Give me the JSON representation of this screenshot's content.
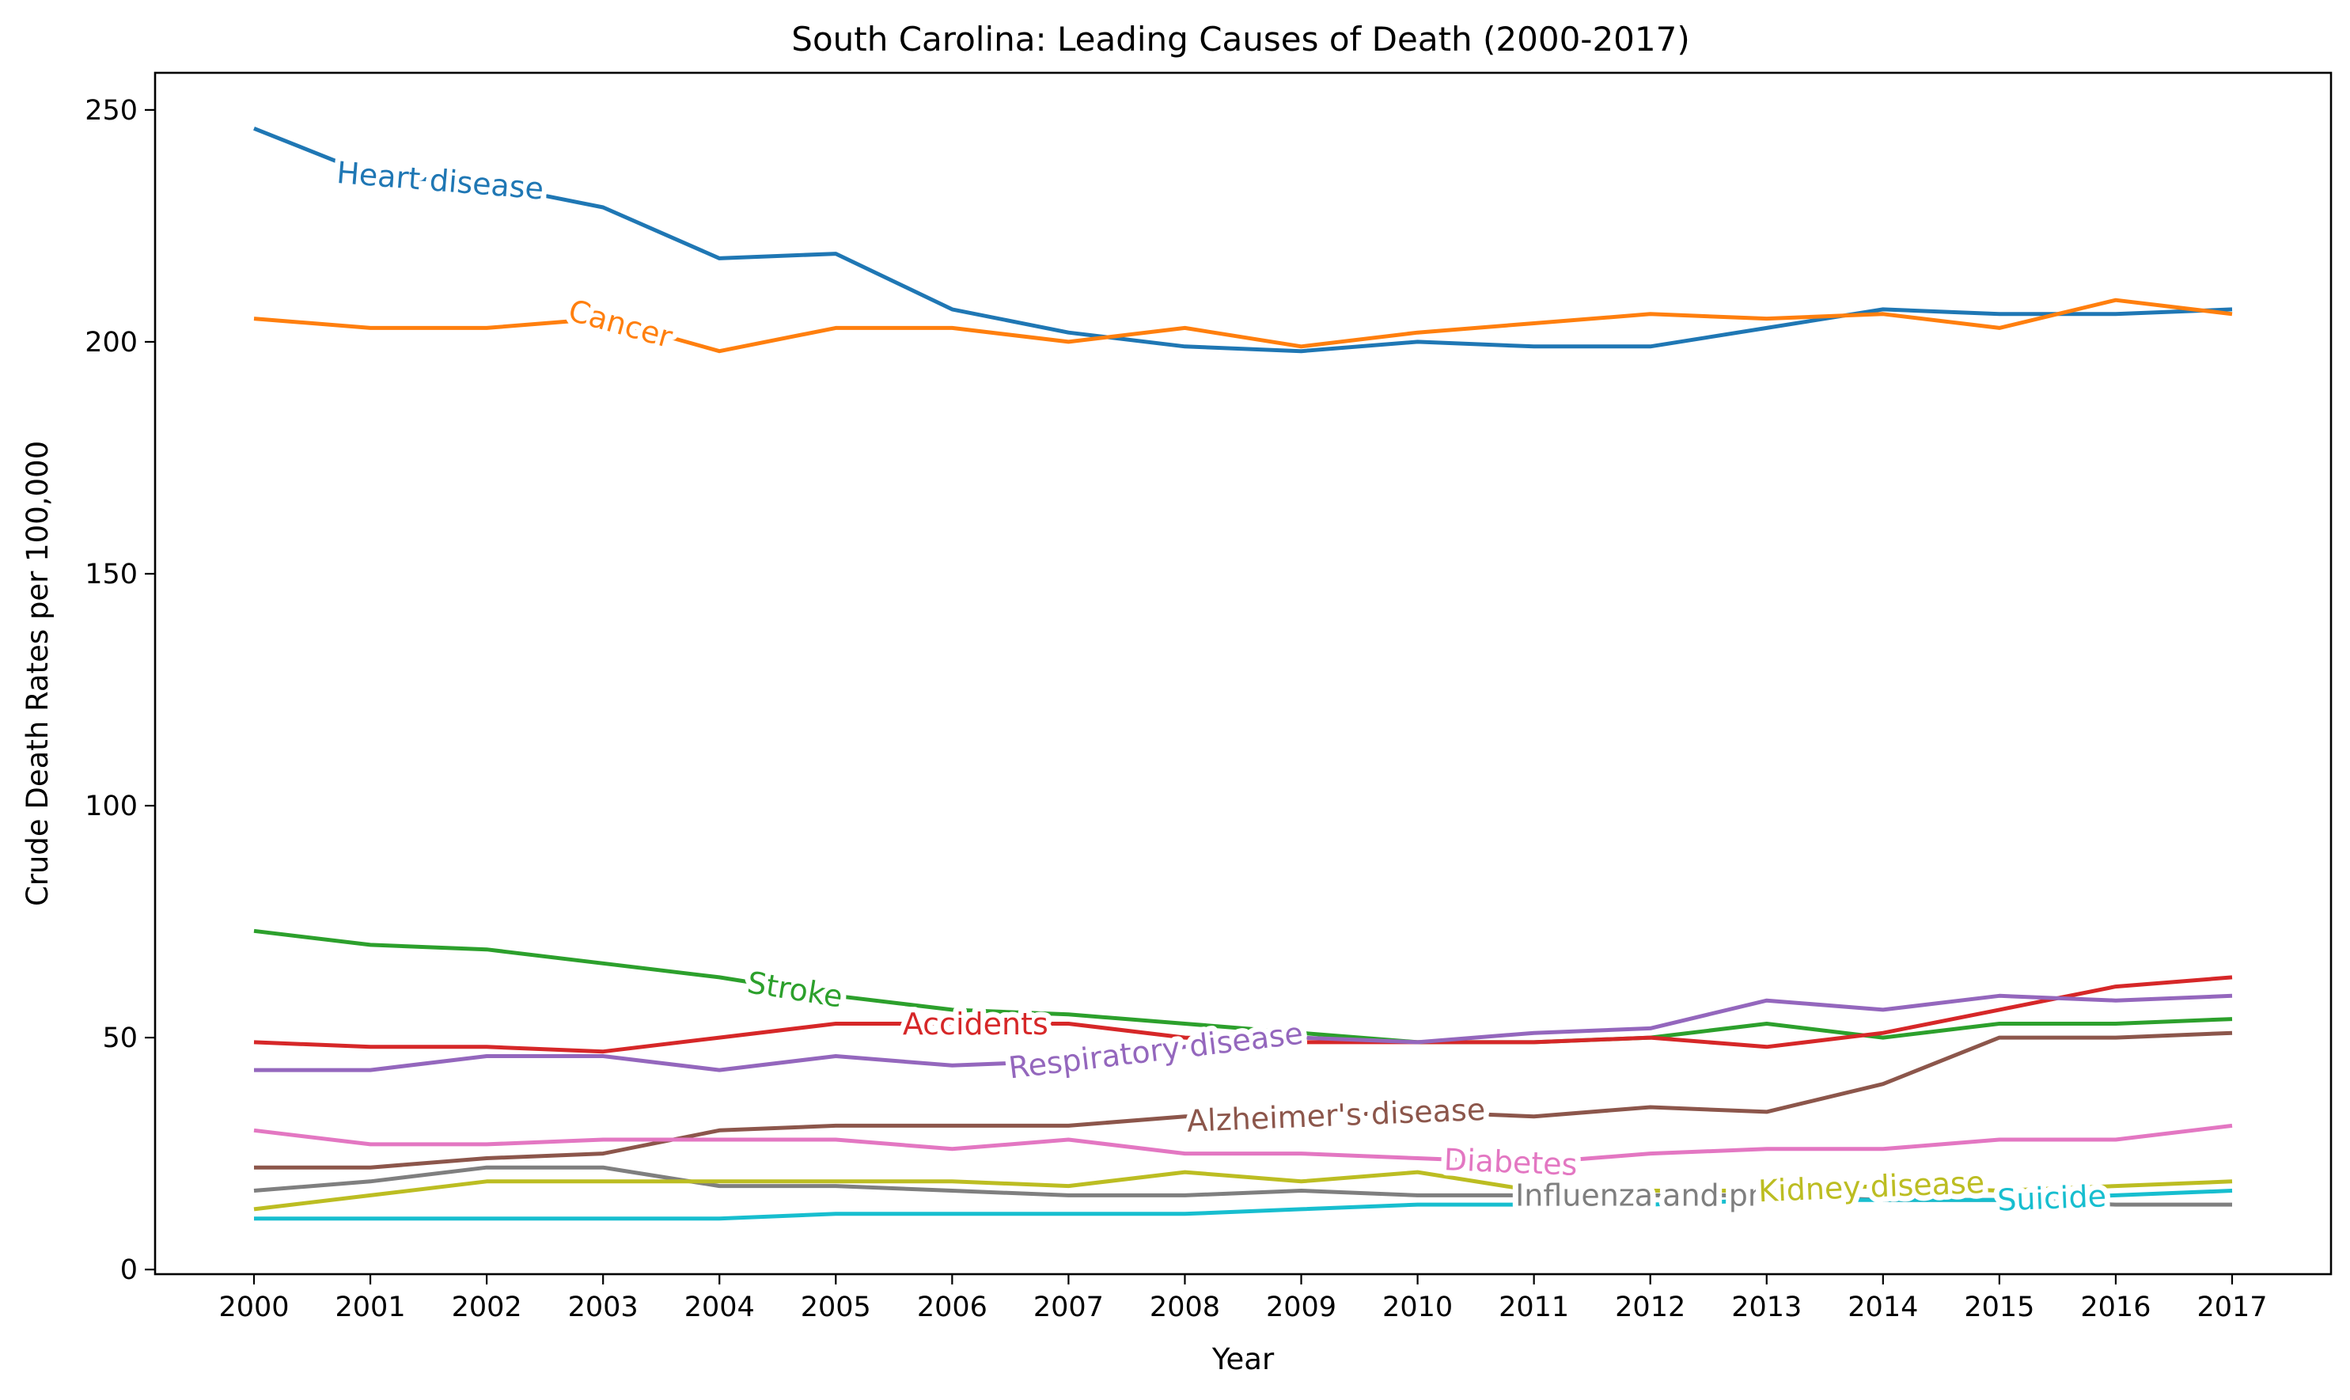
{
  "chart_data": {
    "type": "line",
    "title": "South Carolina: Leading Causes of Death (2000-2017)",
    "xlabel": "Year",
    "ylabel": "Crude Death Rates per 100,000",
    "x": [
      2000,
      2001,
      2002,
      2003,
      2004,
      2005,
      2006,
      2007,
      2008,
      2009,
      2010,
      2011,
      2012,
      2013,
      2014,
      2015,
      2016,
      2017
    ],
    "xlim": [
      1999.15,
      2017.85
    ],
    "ylim": [
      -1,
      258
    ],
    "yticks": [
      0,
      50,
      100,
      150,
      200,
      250
    ],
    "grid": false,
    "legend": "inline labels on lines",
    "series": [
      {
        "name": "Heart disease",
        "color": "#1f77b4",
        "label_at": 2001.6,
        "label_text": "Heart disease",
        "values": [
          246,
          236,
          234,
          229,
          218,
          219,
          207,
          202,
          199,
          198,
          200,
          199,
          199,
          203,
          207,
          206,
          206,
          207
        ]
      },
      {
        "name": "Cancer",
        "color": "#ff7f0e",
        "label_at": 2003.15,
        "label_text": "Cancer",
        "values": [
          205,
          203,
          203,
          205,
          198,
          203,
          203,
          200,
          203,
          199,
          202,
          204,
          206,
          205,
          206,
          203,
          209,
          206
        ]
      },
      {
        "name": "Stroke",
        "color": "#2ca02c",
        "label_at": 2004.65,
        "label_text": "Stroke",
        "values": [
          73,
          70,
          69,
          66,
          63,
          59,
          56,
          55,
          53,
          51,
          49,
          49,
          50,
          53,
          50,
          53,
          53,
          54
        ]
      },
      {
        "name": "Accidents",
        "color": "#d62728",
        "label_at": 2006.2,
        "label_text": "Accidents",
        "values": [
          49,
          48,
          48,
          47,
          50,
          53,
          53,
          53,
          50,
          49,
          49,
          49,
          50,
          48,
          51,
          56,
          61,
          63
        ]
      },
      {
        "name": "Respiratory disease",
        "color": "#9467bd",
        "label_at": 2007.75,
        "label_text": "Respiratory disease",
        "values": [
          43,
          43,
          46,
          46,
          43,
          46,
          44,
          45,
          48,
          50,
          49,
          51,
          52,
          58,
          56,
          59,
          58,
          59
        ]
      },
      {
        "name": "Alzheimer's disease",
        "color": "#8c564b",
        "label_at": 2009.3,
        "label_text": "Alzheimer's disease",
        "values": [
          22,
          22,
          24,
          25,
          30,
          31,
          31,
          31,
          33,
          33,
          34,
          33,
          35,
          34,
          40,
          50,
          50,
          51
        ]
      },
      {
        "name": "Diabetes",
        "color": "#e377c2",
        "label_at": 2010.8,
        "label_text": "Diabetes",
        "values": [
          30,
          27,
          27,
          28,
          28,
          28,
          26,
          28,
          25,
          25,
          24,
          23,
          25,
          26,
          26,
          28,
          28,
          31
        ]
      },
      {
        "name": "Influenza and pneumonia",
        "color": "#7f7f7f",
        "label_at": 2012.0,
        "label_text": "Influenza and pne",
        "values": [
          17,
          19,
          22,
          22,
          18,
          18,
          17,
          16,
          16,
          17,
          16,
          16,
          16,
          16,
          15,
          15,
          14,
          14
        ]
      },
      {
        "name": "Kidney disease",
        "color": "#bcbd22",
        "label_at": 2013.9,
        "label_text": "Kidney disease",
        "values": [
          13,
          16,
          19,
          19,
          19,
          19,
          19,
          18,
          21,
          19,
          21,
          17,
          17,
          17,
          18,
          17,
          18,
          19
        ]
      },
      {
        "name": "Suicide",
        "color": "#17becf",
        "label_at": 2015.45,
        "label_text": "Suicide",
        "values": [
          11,
          11,
          11,
          11,
          11,
          12,
          12,
          12,
          12,
          13,
          14,
          14,
          14,
          15,
          15,
          15,
          16,
          17
        ]
      }
    ]
  }
}
